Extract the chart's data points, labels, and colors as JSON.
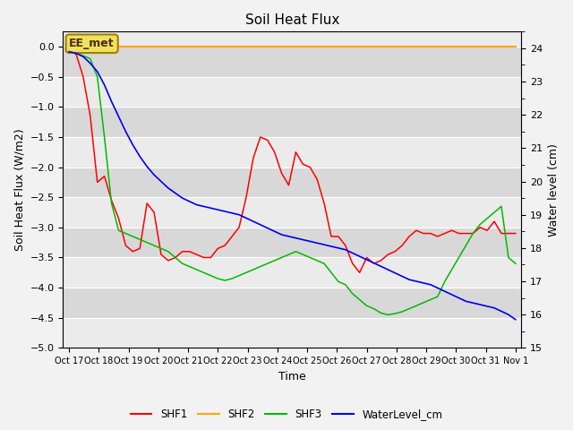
{
  "title": "Soil Heat Flux",
  "ylabel_left": "Soil Heat Flux (W/m2)",
  "ylabel_right": "Water level (cm)",
  "xlabel": "Time",
  "annotation_text": "EE_met",
  "ylim_left": [
    -5.0,
    0.25
  ],
  "ylim_right": [
    15.0,
    24.5
  ],
  "yticks_left": [
    0.0,
    -0.5,
    -1.0,
    -1.5,
    -2.0,
    -2.5,
    -3.0,
    -3.5,
    -4.0,
    -4.5,
    -5.0
  ],
  "yticks_right": [
    15.0,
    16.0,
    17.0,
    18.0,
    19.0,
    20.0,
    21.0,
    22.0,
    23.0,
    24.0
  ],
  "fig_bg": "#f2f2f2",
  "plot_bg_light": "#ebebeb",
  "plot_bg_dark": "#d8d8d8",
  "colors": {
    "SHF1": "#ff0000",
    "SHF2": "#ffa500",
    "SHF3": "#00bb00",
    "WaterLevel": "#0000ee"
  },
  "x_labels": [
    "Oct 17",
    "Oct 18",
    "Oct 19",
    "Oct 20",
    "Oct 21",
    "Oct 22",
    "Oct 23",
    "Oct 24",
    "Oct 25",
    "Oct 26",
    "Oct 27",
    "Oct 28",
    "Oct 29",
    "Oct 30",
    "Oct 31",
    "Nov 1"
  ],
  "n_points": 16,
  "SHF1": [
    -0.08,
    -0.12,
    -0.5,
    -1.15,
    -2.25,
    -2.15,
    -2.55,
    -2.85,
    -3.3,
    -3.4,
    -3.35,
    -2.6,
    -2.75,
    -3.45,
    -3.55,
    -3.5,
    -3.4,
    -3.4,
    -3.45,
    -3.5,
    -3.5,
    -3.35,
    -3.3,
    -3.15,
    -3.0,
    -2.5,
    -1.85,
    -1.5,
    -1.55,
    -1.75,
    -2.1,
    -2.3,
    -1.75,
    -1.95,
    -2.0,
    -2.2,
    -2.6,
    -3.15,
    -3.15,
    -3.3,
    -3.6,
    -3.75,
    -3.5,
    -3.6,
    -3.55,
    -3.45,
    -3.4,
    -3.3,
    -3.15,
    -3.05,
    -3.1,
    -3.1,
    -3.15,
    -3.1,
    -3.05,
    -3.1,
    -3.1,
    -3.1,
    -3.0,
    -3.05,
    -2.9,
    -3.1,
    -3.1,
    -3.1
  ],
  "SHF2": [
    0.0,
    0.0,
    0.0,
    0.0,
    0.0,
    0.0,
    0.0,
    0.0,
    0.0,
    0.0,
    0.0,
    0.0,
    0.0,
    0.0,
    0.0,
    0.0,
    0.0,
    0.0,
    0.0,
    0.0,
    0.0,
    0.0,
    0.0,
    0.0,
    0.0,
    0.0,
    0.0,
    0.0,
    0.0,
    0.0,
    0.0,
    0.0,
    0.0,
    0.0,
    0.0,
    0.0,
    0.0,
    0.0,
    0.0,
    0.0,
    0.0,
    0.0,
    0.0,
    0.0,
    0.0,
    0.0,
    0.0,
    0.0,
    0.0,
    0.0,
    0.0,
    0.0,
    0.0,
    0.0,
    0.0,
    0.0,
    0.0,
    0.0,
    0.0,
    0.0,
    0.0,
    0.0,
    0.0,
    0.0
  ],
  "SHF3": [
    -0.08,
    -0.1,
    -0.15,
    -0.2,
    -0.5,
    -1.5,
    -2.6,
    -3.05,
    -3.1,
    -3.15,
    -3.2,
    -3.25,
    -3.3,
    -3.35,
    -3.4,
    -3.5,
    -3.6,
    -3.65,
    -3.7,
    -3.75,
    -3.8,
    -3.85,
    -3.88,
    -3.85,
    -3.8,
    -3.75,
    -3.7,
    -3.65,
    -3.6,
    -3.55,
    -3.5,
    -3.45,
    -3.4,
    -3.45,
    -3.5,
    -3.55,
    -3.6,
    -3.75,
    -3.9,
    -3.95,
    -4.1,
    -4.2,
    -4.3,
    -4.35,
    -4.42,
    -4.45,
    -4.43,
    -4.4,
    -4.35,
    -4.3,
    -4.25,
    -4.2,
    -4.15,
    -3.9,
    -3.7,
    -3.5,
    -3.3,
    -3.1,
    -2.95,
    -2.85,
    -2.75,
    -2.65,
    -3.5,
    -3.6
  ],
  "WaterLevel": [
    23.9,
    23.85,
    23.75,
    23.55,
    23.3,
    22.9,
    22.4,
    21.95,
    21.5,
    21.1,
    20.75,
    20.45,
    20.2,
    20.0,
    19.8,
    19.65,
    19.5,
    19.4,
    19.3,
    19.25,
    19.2,
    19.15,
    19.1,
    19.05,
    19.0,
    18.9,
    18.8,
    18.7,
    18.6,
    18.5,
    18.4,
    18.35,
    18.3,
    18.25,
    18.2,
    18.15,
    18.1,
    18.05,
    18.0,
    17.95,
    17.85,
    17.75,
    17.65,
    17.55,
    17.45,
    17.35,
    17.25,
    17.15,
    17.05,
    17.0,
    16.95,
    16.9,
    16.8,
    16.7,
    16.6,
    16.5,
    16.4,
    16.35,
    16.3,
    16.25,
    16.2,
    16.1,
    16.0,
    15.85
  ]
}
